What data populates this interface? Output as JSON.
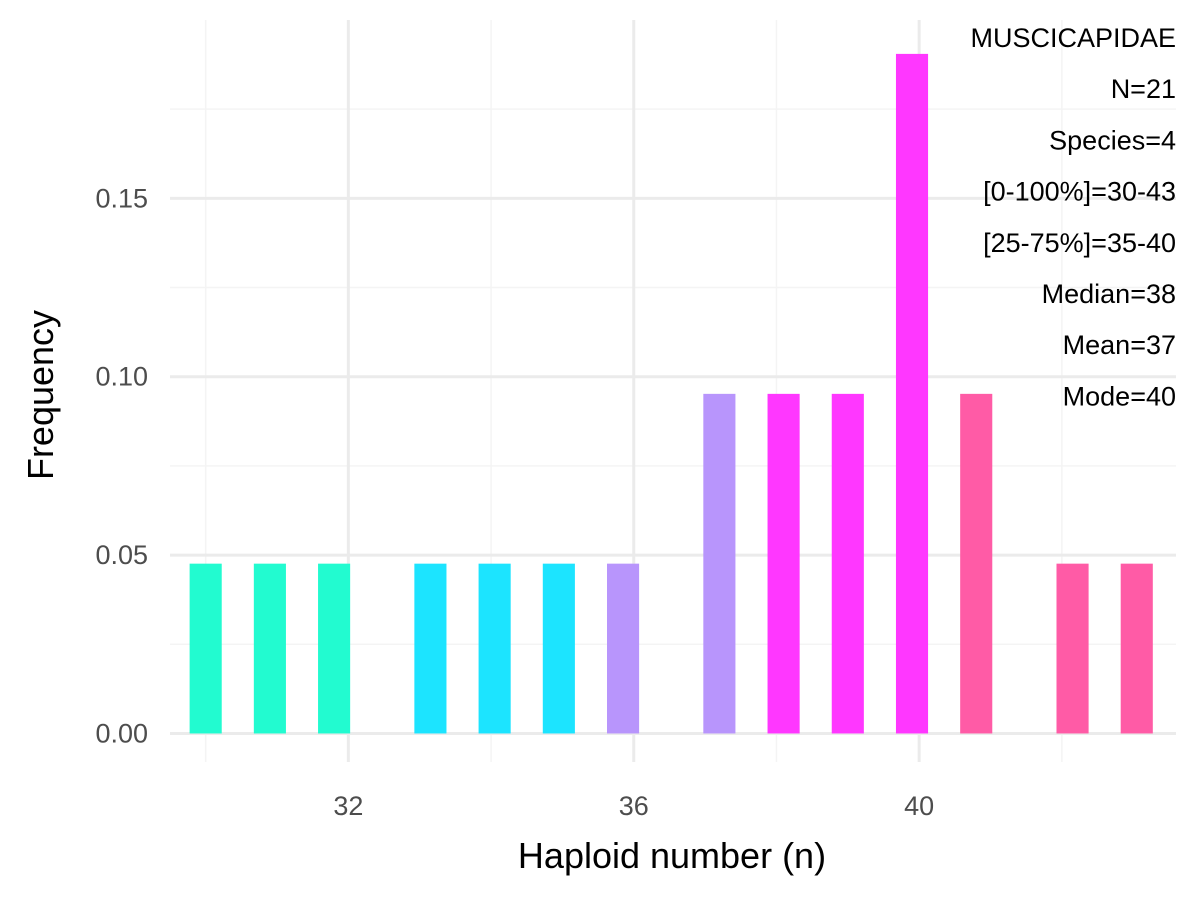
{
  "chart_data": {
    "type": "bar",
    "title": "",
    "xlabel": "Haploid number (n)",
    "ylabel": "Frequency",
    "xlim": [
      29.5,
      43.6
    ],
    "ylim": [
      -0.008,
      0.2
    ],
    "x_ticks": [
      32,
      36,
      40
    ],
    "y_ticks": [
      0.0,
      0.05,
      0.1,
      0.15
    ],
    "grid": true,
    "bar_width": 0.45,
    "points": [
      {
        "x": 30.0,
        "y": 0.0476,
        "color": "#22FBD0"
      },
      {
        "x": 30.9,
        "y": 0.0476,
        "color": "#22FBD0"
      },
      {
        "x": 31.8,
        "y": 0.0476,
        "color": "#22FBD0"
      },
      {
        "x": 33.15,
        "y": 0.0476,
        "color": "#1CE4FF"
      },
      {
        "x": 34.05,
        "y": 0.0476,
        "color": "#1CE4FF"
      },
      {
        "x": 34.95,
        "y": 0.0476,
        "color": "#1CE4FF"
      },
      {
        "x": 35.85,
        "y": 0.0476,
        "color": "#B895FC"
      },
      {
        "x": 37.2,
        "y": 0.0952,
        "color": "#B895FC"
      },
      {
        "x": 38.1,
        "y": 0.0952,
        "color": "#FF37FF"
      },
      {
        "x": 39.0,
        "y": 0.0952,
        "color": "#FF37FF"
      },
      {
        "x": 39.9,
        "y": 0.1905,
        "color": "#FF37FF"
      },
      {
        "x": 40.8,
        "y": 0.0952,
        "color": "#FF5BA6"
      },
      {
        "x": 42.15,
        "y": 0.0476,
        "color": "#FF5BA6"
      },
      {
        "x": 43.05,
        "y": 0.0476,
        "color": "#FF5BA6"
      }
    ],
    "annotations": [
      "MUSCICAPIDAE",
      "N=21",
      "Species=4",
      "[0-100%]=30-43",
      "[25-75%]=35-40",
      "Median=38",
      "Mean=37",
      "Mode=40"
    ],
    "annotation_placement": "top-right",
    "colors": {
      "grid_major": "#EBEBEB",
      "grid_minor": "#F4F4F4",
      "tick_text": "#4D4D4D"
    }
  }
}
